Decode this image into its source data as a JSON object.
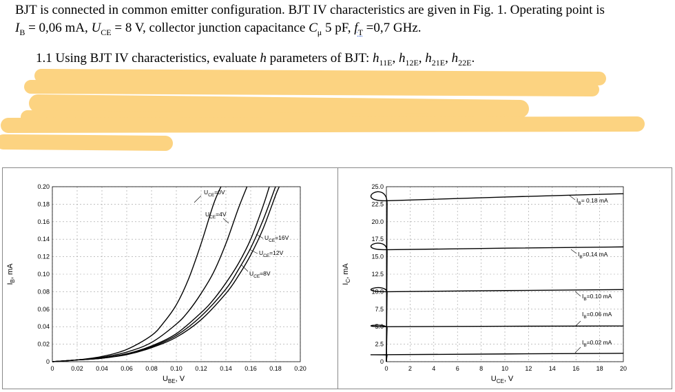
{
  "text": {
    "line1": "BJT is connected in common emitter configuration. BJT IV characteristics are given in Fig. 1. Operating point is",
    "line2_ib": "I",
    "line2_ib_sub": "B",
    "line2_ib_val": " = 0,06 mA, ",
    "line2_uce": "U",
    "line2_uce_sub": "CE",
    "line2_uce_val": " = 8 V, collector junction capacitance ",
    "line2_cmu": "C",
    "line2_cmu_sub": "μ",
    "line2_cmu_val": " 5 pF, ",
    "line2_ft": "f",
    "line2_ft_sub": "T",
    "line2_ft_val": " =0,7 GHz.",
    "line3_a": "1.1 Using BJT IV characteristics, evaluate ",
    "line3_h": "h",
    "line3_b": " parameters of BJT: ",
    "h11": "h",
    "h11_sub": "11E",
    "h12": "h",
    "h12_sub": "12E",
    "h21": "h",
    "h21_sub": "21E",
    "h22": "h",
    "h22_sub": "22E",
    "sep": ", ",
    "end": "."
  },
  "colors": {
    "redaction": "#fcd381",
    "curve": "#000000",
    "grid": "#9a9a9a"
  },
  "chart_data": [
    {
      "type": "line",
      "title": "",
      "xlabel": "U",
      "xlabel_sub": "BE",
      "xlabel_unit": ", V",
      "ylabel": "I",
      "ylabel_sub": "B",
      "ylabel_unit": ", mA",
      "xlim": [
        0,
        0.2
      ],
      "ylim": [
        0,
        0.2
      ],
      "xticks": [
        "0",
        "0.02",
        "0.04",
        "0.06",
        "0.08",
        "0.10",
        "0.12",
        "0.14",
        "0.16",
        "0.18",
        "0.20"
      ],
      "yticks": [
        "0",
        "0.02",
        "0.04",
        "0.06",
        "0.08",
        "0.10",
        "0.12",
        "0.14",
        "0.16",
        "0.18",
        "0.20"
      ],
      "grid": true,
      "series": [
        {
          "name": "U_CE=0V",
          "label": "U",
          "label_sub": "CE",
          "label_val": "=0V",
          "x": [
            0,
            0.02,
            0.04,
            0.06,
            0.08,
            0.09,
            0.1,
            0.11,
            0.12,
            0.13,
            0.136
          ],
          "y": [
            0,
            0.002,
            0.006,
            0.014,
            0.03,
            0.045,
            0.065,
            0.095,
            0.135,
            0.18,
            0.2
          ]
        },
        {
          "name": "U_CE=4V",
          "label": "U",
          "label_sub": "CE",
          "label_val": "=4V",
          "x": [
            0,
            0.02,
            0.04,
            0.06,
            0.08,
            0.1,
            0.11,
            0.12,
            0.13,
            0.14,
            0.15,
            0.157
          ],
          "y": [
            0,
            0.002,
            0.005,
            0.011,
            0.022,
            0.043,
            0.058,
            0.078,
            0.102,
            0.135,
            0.175,
            0.2
          ]
        },
        {
          "name": "U_CE=16V",
          "label": "U",
          "label_sub": "CE",
          "label_val": "=16V",
          "x": [
            0,
            0.02,
            0.04,
            0.06,
            0.08,
            0.1,
            0.12,
            0.13,
            0.14,
            0.15,
            0.16,
            0.17,
            0.175
          ],
          "y": [
            0,
            0.002,
            0.004,
            0.009,
            0.018,
            0.032,
            0.056,
            0.071,
            0.09,
            0.112,
            0.14,
            0.178,
            0.2
          ]
        },
        {
          "name": "U_CE=12V",
          "label": "U",
          "label_sub": "CE",
          "label_val": "=12V",
          "x": [
            0,
            0.02,
            0.04,
            0.06,
            0.08,
            0.1,
            0.12,
            0.14,
            0.15,
            0.16,
            0.17,
            0.18
          ],
          "y": [
            0,
            0.002,
            0.004,
            0.009,
            0.017,
            0.03,
            0.052,
            0.083,
            0.105,
            0.13,
            0.162,
            0.2
          ]
        },
        {
          "name": "U_CE=8V",
          "label": "U",
          "label_sub": "CE",
          "label_val": "=8V",
          "x": [
            0,
            0.02,
            0.04,
            0.06,
            0.08,
            0.1,
            0.12,
            0.14,
            0.15,
            0.16,
            0.17,
            0.18,
            0.183
          ],
          "y": [
            0,
            0.002,
            0.004,
            0.008,
            0.016,
            0.028,
            0.048,
            0.078,
            0.098,
            0.122,
            0.152,
            0.19,
            0.2
          ]
        }
      ]
    },
    {
      "type": "line",
      "title": "",
      "xlabel": "U",
      "xlabel_sub": "CE",
      "xlabel_unit": ", V",
      "ylabel": "I",
      "ylabel_sub": "C",
      "ylabel_unit": ", mA",
      "xlim": [
        0,
        20
      ],
      "ylim": [
        0,
        25
      ],
      "xticks": [
        "0",
        "2",
        "4",
        "6",
        "8",
        "10",
        "12",
        "14",
        "16",
        "18",
        "20"
      ],
      "yticks": [
        "0",
        "2.5",
        "5.0",
        "7.5",
        "10.0",
        "12.5",
        "15.0",
        "17.5",
        "20.0",
        "22.5",
        "25.0"
      ],
      "grid": true,
      "series": [
        {
          "name": "I_B=0.18 mA",
          "label": "I",
          "label_sub": "B",
          "label_val": "= 0.18 mA",
          "x": [
            0,
            0.06,
            0.2,
            20
          ],
          "y": [
            0,
            22.5,
            23.0,
            24.0
          ]
        },
        {
          "name": "I_B=0.14 mA",
          "label": "I",
          "label_sub": "B",
          "label_val": "=0.14 mA",
          "x": [
            0,
            0.06,
            0.2,
            20
          ],
          "y": [
            0,
            15.7,
            16.0,
            16.4
          ]
        },
        {
          "name": "I_B=0.10 mA",
          "label": "I",
          "label_sub": "B",
          "label_val": "=0.10 mA",
          "x": [
            0,
            0.06,
            0.2,
            20
          ],
          "y": [
            0,
            9.8,
            10.0,
            10.3
          ]
        },
        {
          "name": "I_B=0.06 mA",
          "label": "I",
          "label_sub": "B",
          "label_val": "=0.06 mA",
          "x": [
            0,
            0.06,
            0.2,
            20
          ],
          "y": [
            0,
            4.8,
            5.0,
            5.1
          ]
        },
        {
          "name": "I_B=0.02 mA",
          "label": "I",
          "label_sub": "B",
          "label_val": "=0.02 mA",
          "x": [
            0,
            0.06,
            0.2,
            20
          ],
          "y": [
            0,
            0.9,
            1.0,
            1.2
          ]
        }
      ]
    }
  ]
}
